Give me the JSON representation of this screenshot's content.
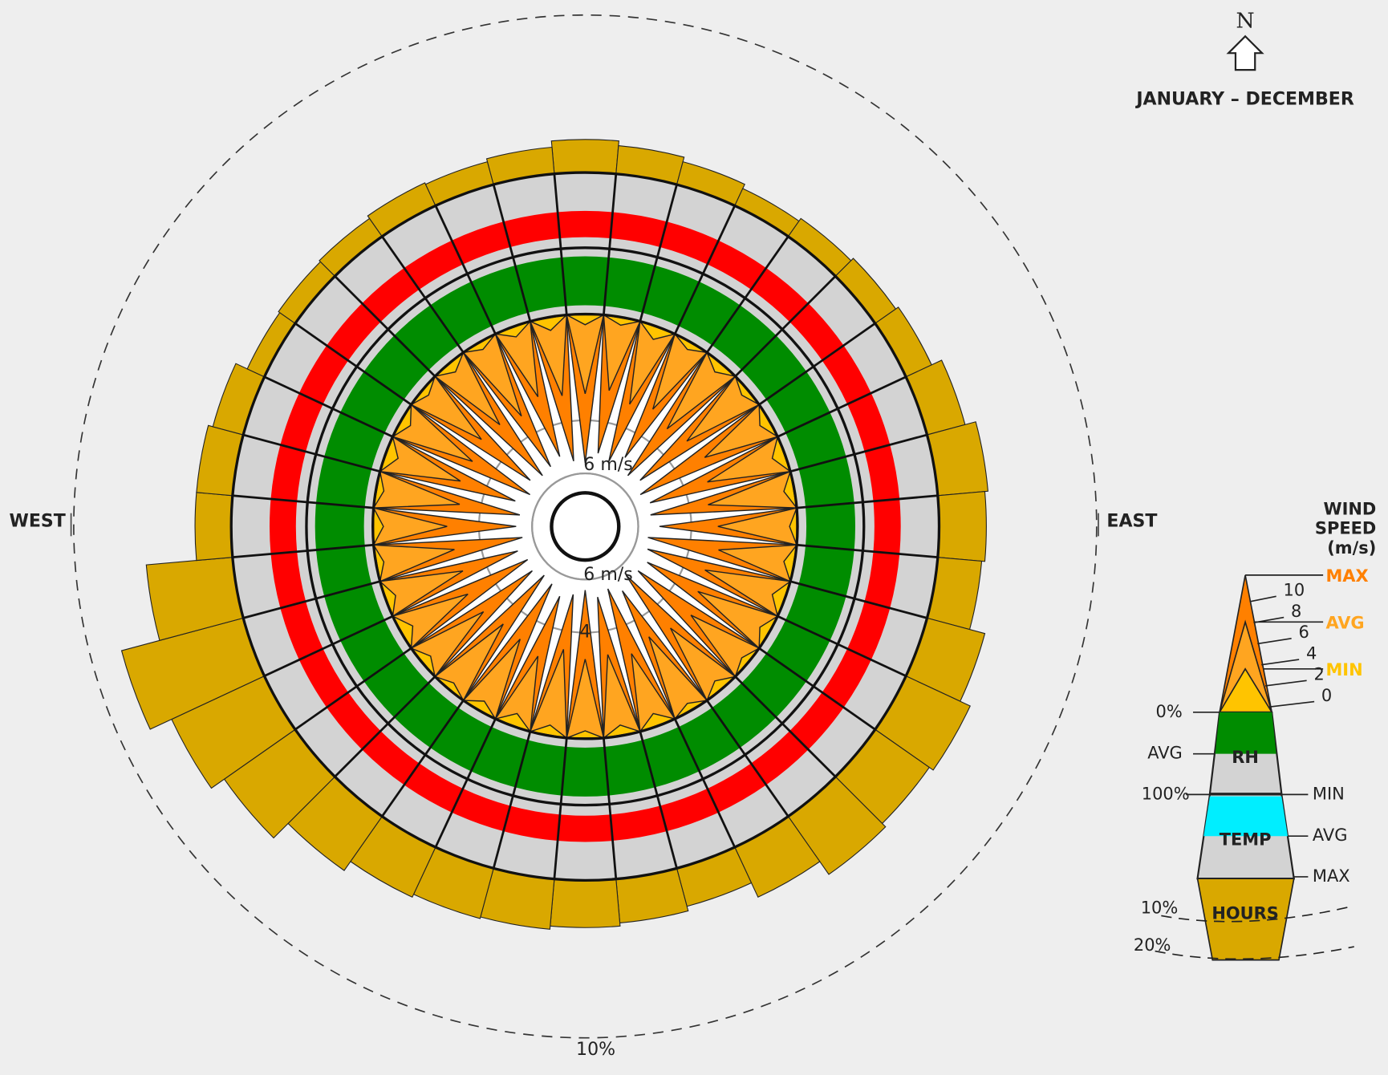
{
  "chart_data": {
    "type": "windrose",
    "title": "JANUARY – DECEMBER",
    "north_label": "N",
    "west_label": "WEST",
    "east_label": "EAST",
    "hours": {
      "values": [
        2.1,
        1.8,
        1.5,
        1.2,
        1.4,
        1.6,
        1.8,
        2.5,
        3.2,
        3.0,
        2.8,
        3.8,
        4.5,
        4.2,
        4.5,
        3.5,
        2.5,
        2.8,
        3.0,
        3.2,
        3.3,
        3.5,
        4.2,
        5.5,
        6.5,
        8.0,
        5.5,
        2.3,
        2.3,
        2.0,
        1.2,
        1.3,
        1.4,
        1.6,
        1.5,
        1.7
      ],
      "color": "#d9a800",
      "ring": {
        "value": 10,
        "label": "10%"
      }
    },
    "wind": {
      "max": [
        5.6,
        5.2,
        5.4,
        5.0,
        5.5,
        5.3,
        5.6,
        5.4,
        5.5,
        5.2,
        5.6,
        5.5,
        5.3,
        5.4,
        5.6,
        5.2,
        5.5,
        5.3,
        5.6,
        5.4,
        5.2,
        5.5,
        5.6,
        5.4,
        5.5,
        5.3,
        5.6,
        5.4,
        5.5,
        5.2,
        5.6,
        5.3,
        5.5,
        5.4,
        5.2,
        5.5
      ],
      "avg": [
        3.0,
        2.8,
        3.1,
        2.9,
        3.2,
        3.0,
        2.8,
        3.1,
        3.3,
        3.0,
        2.9,
        3.2,
        3.1,
        2.8,
        3.0,
        3.2,
        2.9,
        3.1,
        3.0,
        3.3,
        2.8,
        3.1,
        3.2,
        3.0,
        2.9,
        3.1,
        3.0,
        2.8,
        3.2,
        3.0,
        3.1,
        2.9,
        3.0,
        3.2,
        2.8,
        3.0
      ],
      "min": [
        0.4,
        0.3,
        0.5,
        0.3,
        0.4,
        0.3,
        0.4,
        0.5,
        0.4,
        0.3,
        0.4,
        0.5,
        0.4,
        0.3,
        0.4,
        0.3,
        0.5,
        0.4,
        0.3,
        0.4,
        0.5,
        0.4,
        0.3,
        0.4,
        0.5,
        0.4,
        0.3,
        0.4,
        0.3,
        0.5,
        0.4,
        0.3,
        0.4,
        0.3,
        0.4,
        0.5
      ],
      "max_color": "#ff8000",
      "avg_color": "#ffa520",
      "min_color": "#ffc400",
      "lim": [
        0,
        8
      ],
      "ticks": [
        {
          "value": 6,
          "label": "6 m/s"
        },
        {
          "value": 6,
          "label": "6 m/s"
        },
        4
      ]
    },
    "rh": {
      "avg": 85,
      "lim": [
        0,
        100
      ],
      "color": "#008c00"
    },
    "temp": {
      "min": 14,
      "avg": 49,
      "lim": [
        0,
        100
      ],
      "color": "#ff0000",
      "legend_color": "#00eeff"
    },
    "legend": {
      "title_lines": [
        "WIND",
        "SPEED",
        "(m/s)"
      ],
      "max": "MAX",
      "avg": "AVG",
      "min": "MIN",
      "speed_ticks": [
        10,
        8,
        6,
        4,
        2,
        0
      ],
      "rh": {
        "top": "0%",
        "avg": "AVG",
        "label": "RH",
        "bottom": "100%"
      },
      "temp": {
        "min": "MIN",
        "label": "TEMP",
        "avg": "AVG",
        "max": "MAX"
      },
      "hours": {
        "label": "HOURS",
        "ticks": [
          "10%",
          "20%"
        ]
      }
    }
  }
}
